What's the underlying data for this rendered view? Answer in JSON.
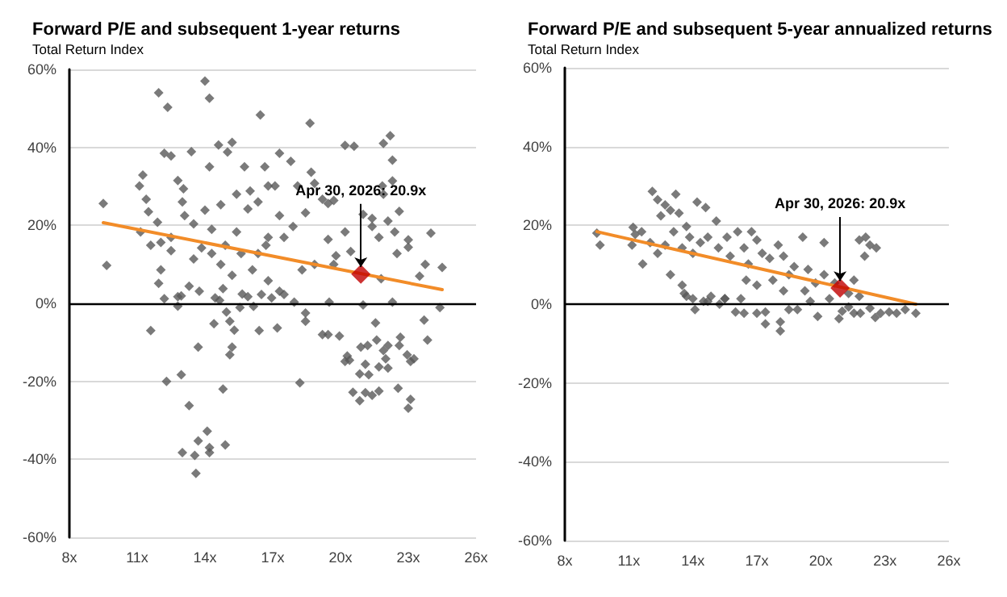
{
  "chart_data": [
    {
      "type": "scatter",
      "title": "Forward P/E and subsequent 1-year returns",
      "subtitle": "Total Return Index",
      "xlim": [
        8,
        26
      ],
      "xticks": [
        {
          "value": 8,
          "label": "8x"
        },
        {
          "value": 11,
          "label": "11x"
        },
        {
          "value": 14,
          "label": "14x"
        },
        {
          "value": 17,
          "label": "17x"
        },
        {
          "value": 20,
          "label": "20x"
        },
        {
          "value": 23,
          "label": "23x"
        },
        {
          "value": 26,
          "label": "26x"
        }
      ],
      "ylim": [
        -60,
        60
      ],
      "yticks": [
        {
          "value": -60,
          "label": "-60%"
        },
        {
          "value": -40,
          "label": "-40%"
        },
        {
          "value": -20,
          "label": "-20%"
        },
        {
          "value": 0,
          "label": "0%"
        },
        {
          "value": 20,
          "label": "20%"
        },
        {
          "value": 40,
          "label": "40%"
        },
        {
          "value": 60,
          "label": "60%"
        }
      ],
      "grid": "y",
      "marker": "diamond",
      "ref_lines": [
        {
          "axis": "y",
          "value": 0,
          "color": "#000000"
        }
      ],
      "annotations": [
        {
          "text": "Apr 30, 2026: 20.9x",
          "x": 20.9,
          "y": 7.5
        }
      ],
      "series": [
        {
          "color": "#595959",
          "x": [
            9.5,
            9.65,
            11.95,
            12.35,
            14.0,
            14.2,
            16.45,
            18.65,
            20.2,
            20.6,
            22.2,
            21.9,
            22.3,
            22.3,
            21.85,
            21.9,
            22.6,
            21.0,
            21.4,
            22.1,
            23.0,
            24.0,
            22.5,
            23.0,
            23.75,
            24.5,
            23.5,
            21.8,
            19.8,
            20.45,
            19.45,
            20.2,
            18.7,
            18.85,
            19.2,
            19.45,
            19.7,
            18.1,
            17.8,
            17.3,
            17.1,
            16.65,
            16.0,
            15.9,
            15.75,
            15.2,
            15.0,
            14.6,
            14.2,
            13.4,
            12.8,
            13.05,
            12.5,
            12.2,
            11.25,
            11.1,
            11.4,
            11.5,
            11.15,
            11.6,
            12.05,
            11.9,
            12.5,
            13.0,
            13.1,
            13.5,
            13.85,
            12.5,
            12.05,
            11.95,
            12.8,
            13.3,
            13.75,
            14.3,
            14.7,
            14.9,
            15.4,
            15.6,
            15.2,
            14.8,
            15.65,
            16.1,
            16.35,
            16.7,
            16.8,
            17.3,
            17.5,
            17.9,
            17.3,
            16.8,
            18.3,
            18.85,
            18.45,
            14.0,
            14.3,
            13.5,
            14.7,
            16.35,
            15.4,
            16.8,
            19.7,
            21.7,
            22.4,
            21.4,
            11.6,
            12.2,
            12.3,
            12.8,
            12.95,
            12.95,
            13.0,
            13.3,
            13.55,
            13.6,
            13.7,
            13.7,
            14.2,
            14.2,
            14.1,
            14.4,
            14.45,
            14.65,
            14.8,
            14.9,
            14.95,
            15.1,
            15.1,
            15.2,
            15.3,
            15.55,
            15.9,
            16.15,
            16.4,
            16.5,
            16.95,
            17.2,
            17.5,
            17.95,
            18.2,
            18.45,
            18.45,
            19.2,
            19.45,
            19.5,
            19.95,
            20.2,
            20.3,
            20.4,
            20.55,
            20.85,
            20.85,
            20.9,
            21.0,
            21.1,
            21.1,
            21.2,
            21.25,
            21.4,
            21.55,
            21.6,
            21.7,
            21.7,
            21.9,
            22.0,
            22.1,
            22.1,
            22.3,
            22.55,
            22.6,
            22.65,
            22.95,
            23.0,
            23.1,
            23.1,
            23.25,
            23.7,
            23.85,
            24.4
          ],
          "values": [
            25.6,
            9.7,
            54,
            50.3,
            57,
            52.6,
            48.3,
            46.2,
            40.5,
            40.3,
            43,
            41,
            36.7,
            31.4,
            30.1,
            28,
            23.6,
            22.8,
            21.8,
            21.1,
            16.3,
            18,
            12.8,
            14.4,
            10,
            9.2,
            7,
            6.3,
            12.2,
            13.3,
            16.4,
            18.3,
            33.6,
            30.8,
            26.7,
            25.6,
            26.4,
            30.1,
            36.4,
            38.5,
            30.1,
            35,
            28.8,
            24.2,
            35,
            41.3,
            38.8,
            40.6,
            35,
            38.9,
            31.5,
            29.4,
            37.8,
            38.5,
            32.9,
            30.1,
            26.7,
            23.5,
            18.3,
            14.9,
            15.6,
            20.8,
            16.9,
            26,
            22.5,
            20.4,
            14.2,
            13.5,
            8.6,
            5.1,
            1.7,
            4.4,
            3.1,
            12.8,
            10,
            14.9,
            18.3,
            12.8,
            7.2,
            3.8,
            2.4,
            8.6,
            12.8,
            14.9,
            5.8,
            3.1,
            16.9,
            19.7,
            22.5,
            16.9,
            8.6,
            10,
            23.2,
            23.9,
            19,
            11.4,
            25.3,
            26,
            28,
            30.1,
            10,
            16.9,
            18.3,
            19.7,
            -7,
            1.2,
            -20,
            -0.7,
            1.9,
            -18.3,
            -38.3,
            -26.2,
            -39,
            -43.6,
            -11.2,
            -35.3,
            -38.3,
            -37,
            -32.8,
            -5.2,
            1.4,
            0.8,
            -22,
            -36.3,
            -2.2,
            -4.6,
            -13.2,
            -11.2,
            -6.9,
            -1.1,
            1.7,
            -0.8,
            -7,
            2.3,
            1.4,
            -6.3,
            2.3,
            0.3,
            -20.4,
            -2.5,
            -4.6,
            -8,
            -8,
            0.3,
            -8.4,
            -14.9,
            -13.5,
            -14.6,
            -22.8,
            -18.1,
            -25,
            -11.2,
            -0.4,
            -15.6,
            -22.9,
            -10.8,
            -18.3,
            -23.6,
            -5,
            -9.4,
            -16.3,
            -22.5,
            -12.1,
            -14.2,
            -16.6,
            -10.8,
            0.3,
            -21.8,
            -10.8,
            -8.7,
            -13.2,
            -26.9,
            -24.6,
            -14.9,
            -14.2,
            -4.3,
            -9.4,
            -1.1
          ]
        },
        {
          "type": "line",
          "color": "#f28c28",
          "marker": "none",
          "x": [
            9.5,
            24.5
          ],
          "values": [
            20.7,
            3.5
          ]
        },
        {
          "color": "#c00000",
          "x": [
            20.9
          ],
          "values": [
            7.5
          ]
        }
      ]
    },
    {
      "type": "scatter",
      "title": "Forward P/E and subsequent 5-year annualized returns",
      "subtitle": "Total Return Index",
      "xlim": [
        8,
        26
      ],
      "xticks": [
        {
          "value": 8,
          "label": "8x"
        },
        {
          "value": 11,
          "label": "11x"
        },
        {
          "value": 14,
          "label": "14x"
        },
        {
          "value": 17,
          "label": "17x"
        },
        {
          "value": 20,
          "label": "20x"
        },
        {
          "value": 23,
          "label": "23x"
        },
        {
          "value": 26,
          "label": "26x"
        }
      ],
      "ylim": [
        -60,
        60
      ],
      "yticks": [
        {
          "value": -60,
          "label": "-60%"
        },
        {
          "value": -40,
          "label": "-40%"
        },
        {
          "value": -20,
          "label": "-20%"
        },
        {
          "value": 0,
          "label": "0%"
        },
        {
          "value": 20,
          "label": "20%"
        },
        {
          "value": 40,
          "label": "40%"
        },
        {
          "value": 60,
          "label": "60%"
        }
      ],
      "grid": "y",
      "marker": "diamond",
      "ref_lines": [
        {
          "axis": "y",
          "value": 0,
          "color": "#000000"
        }
      ],
      "annotations": [
        {
          "text": "Apr 30, 2026: 20.9x",
          "x": 20.9,
          "y": 4.1
        }
      ],
      "series": [
        {
          "color": "#595959",
          "x": [
            9.5,
            9.65,
            11.2,
            11.3,
            11.15,
            11.6,
            12.0,
            11.65,
            12.1,
            12.35,
            12.5,
            12.7,
            12.95,
            13.2,
            13.35,
            13.1,
            12.7,
            12.35,
            13.5,
            13.7,
            13.85,
            14.2,
            14.6,
            14.0,
            14.35,
            14.7,
            15.1,
            15.2,
            15.6,
            15.75,
            16.1,
            16.4,
            16.6,
            16.75,
            17.0,
            17.25,
            17.6,
            18.0,
            18.25,
            18.75,
            19.15,
            19.4,
            20.15,
            20.15,
            20.65,
            21.55,
            21.8,
            22.1,
            22.3,
            22.6,
            22.05,
            12.95,
            13.5,
            13.6,
            14.0,
            14.7,
            15.5,
            16.25,
            16.5,
            17.0,
            17.75,
            18.25,
            18.5,
            19.25,
            19.75,
            20.4,
            21.3,
            21.8,
            13.7,
            14.1,
            14.5,
            14.85,
            15.25,
            15.5,
            16.0,
            16.4,
            17.0,
            17.4,
            17.4,
            18.1,
            18.1,
            18.5,
            18.9,
            19.5,
            19.85,
            20.85,
            21.0,
            21.55,
            21.85,
            22.55,
            22.8,
            23.2,
            23.55,
            23.95,
            24.45,
            21.3,
            22.3
          ],
          "values": [
            18,
            15,
            19.5,
            17.7,
            15,
            18.4,
            15.6,
            10.2,
            28.6,
            26.5,
            22.4,
            25.2,
            23.8,
            27.9,
            23.1,
            18.4,
            15,
            12.9,
            14.3,
            19.7,
            17,
            25.9,
            24.5,
            12.9,
            15.6,
            17,
            21.1,
            14.3,
            17,
            12.2,
            18.4,
            14.3,
            10.2,
            18.4,
            16.3,
            12.9,
            11.6,
            15,
            12.2,
            9.5,
            17,
            8.8,
            15.6,
            7.5,
            5.4,
            6.1,
            16.3,
            17,
            15,
            14.3,
            12.2,
            7.5,
            4.8,
            2.7,
            1.4,
            0.7,
            1.4,
            1.4,
            6.1,
            4.8,
            6.1,
            3.4,
            7.5,
            3.4,
            5.4,
            1.4,
            2.7,
            2,
            2,
            -1.4,
            0.7,
            2,
            0,
            1.4,
            -2,
            -2.3,
            -2.3,
            -5,
            -2,
            -4.5,
            -6.8,
            -1.4,
            -1.4,
            0.7,
            -3.1,
            -3.7,
            -1.8,
            -2.3,
            -2.3,
            -3.4,
            -2.3,
            -2,
            -2.3,
            -1.4,
            -2.3,
            -0.7,
            -1
          ]
        },
        {
          "type": "line",
          "color": "#f28c28",
          "marker": "none",
          "x": [
            9.5,
            24.45
          ],
          "values": [
            18.4,
            0
          ]
        },
        {
          "color": "#c00000",
          "x": [
            20.9
          ],
          "values": [
            4.1
          ]
        }
      ]
    }
  ]
}
